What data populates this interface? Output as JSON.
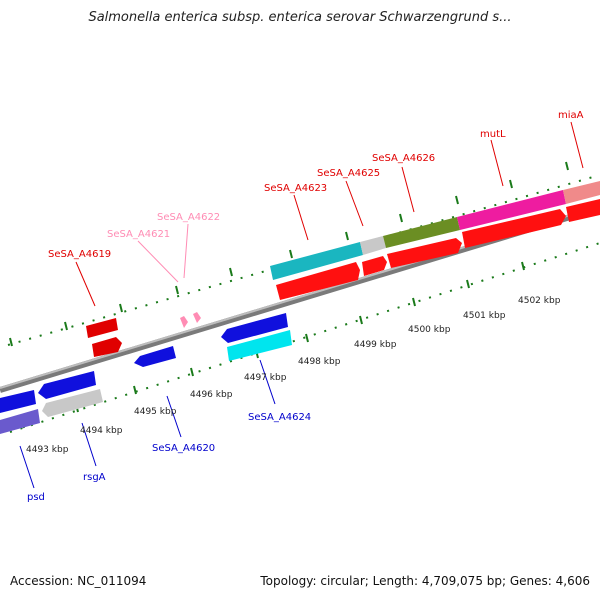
{
  "title": "Salmonella enterica subsp. enterica serovar Schwarzengrund s...",
  "footer": {
    "accession": "Accession: NC_011094",
    "summary": "Topology: circular; Length: 4,709,075 bp; Genes: 4,606"
  },
  "colors": {
    "backbone": "#8c8c8c",
    "tick": "#1a7a1a",
    "label_red": "#e00000",
    "label_pink": "#ff8cb4",
    "label_blue": "#0000cc"
  },
  "kbp_labels": [
    "4493 kbp",
    "4494 kbp",
    "4495 kbp",
    "4496 kbp",
    "4497 kbp",
    "4498 kbp",
    "4499 kbp",
    "4500 kbp",
    "4501 kbp",
    "4502 kbp"
  ],
  "gene_labels": {
    "forward": [
      "SeSA_A4619",
      "SeSA_A4621",
      "SeSA_A4622",
      "SeSA_A4623",
      "SeSA_A4625",
      "SeSA_A4626",
      "mutL",
      "miaA"
    ],
    "reverse": [
      "psd",
      "rsgA",
      "SeSA_A4620",
      "SeSA_A4624"
    ]
  }
}
